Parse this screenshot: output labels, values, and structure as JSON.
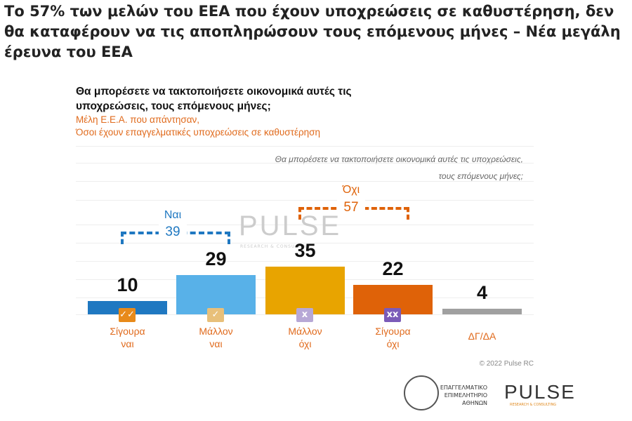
{
  "headline": "Το 57% των μελών του ΕΕΑ που έχουν υποχρεώσεις σε καθυστέρηση, δεν θα καταφέρουν να τις αποπληρώσουν τους επόμενους μήνες – Νέα μεγάλη έρευνα του ΕΕΑ",
  "chart_data": {
    "type": "bar",
    "title": "Θα μπορέσετε να τακτοποιήσετε οικονομικά αυτές τις υποχρεώσεις, τους επόμενους μήνες;",
    "subtitle_1": "Μέλη Ε.Ε.Α. που απάντησαν,",
    "subtitle_2": "Όσοι έχουν επαγγελματικές υποχρεώσεις σε καθυστέρηση",
    "right_question_1": "Θα μπορέσετε να τακτοποιήσετε οικονομικά αυτές τις υποχρεώσεις,",
    "right_question_2": "τους επόμενους μήνες;",
    "categories": [
      [
        "Σίγουρα",
        "ναι"
      ],
      [
        "Μάλλον",
        "ναι"
      ],
      [
        "Μάλλον",
        "όχι"
      ],
      [
        "Σίγουρα",
        "όχι"
      ],
      [
        "ΔΓ/ΔΑ",
        ""
      ]
    ],
    "values": [
      10,
      29,
      35,
      22,
      4
    ],
    "colors": [
      "#1f78c1",
      "#58b1e8",
      "#e8a400",
      "#df6208",
      "#a0a0a0"
    ],
    "badges": [
      {
        "glyph": "✓✓",
        "color": "#e88a1a"
      },
      {
        "glyph": "✓",
        "color": "#e8c07a"
      },
      {
        "glyph": "x",
        "color": "#b7a8d6"
      },
      {
        "glyph": "xx",
        "color": "#7b5bb8"
      },
      null
    ],
    "groups": [
      {
        "label": "Ναι",
        "value": "39",
        "color": "#1f78c1"
      },
      {
        "label": "Όχι",
        "value": "57",
        "color": "#df6208"
      }
    ],
    "ylim": [
      0,
      40
    ],
    "grid": true,
    "watermark": "PULSE",
    "watermark_sub": "RESEARCH & CONSULTING",
    "copyright": "© 2022 Pulse RC"
  },
  "logos": {
    "eea_1": "ΕΠΑΓΓΕΛΜΑΤΙΚΟ",
    "eea_2": "ΕΠΙΜΕΛΗΤΗΡΙΟ",
    "eea_3": "ΑΘΗΝΩΝ",
    "pulse": "PULSE",
    "pulse_sub": "RESEARCH & CONSULTING"
  }
}
